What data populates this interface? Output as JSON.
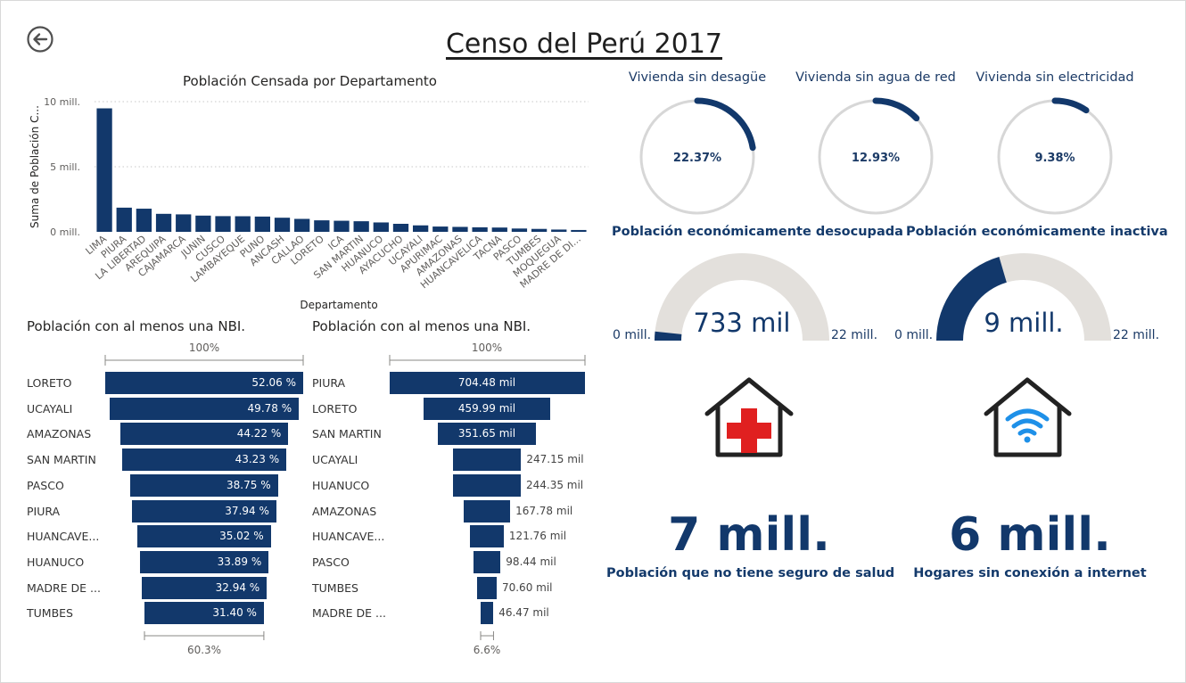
{
  "page": {
    "title": "Censo del Perú 2017"
  },
  "colors": {
    "primary": "#12386b",
    "track": "#e3e0dc",
    "ring_track": "#d7d7d7",
    "cross": "#e02020",
    "wifi": "#1e90e8"
  },
  "bar_chart": {
    "title": "Población Censada por Departamento",
    "xlabel": "Departamento",
    "ylabel": "Suma de Población C...",
    "yticks": [
      "10 mill.",
      "5 mill.",
      "0 mill."
    ]
  },
  "chart_data": [
    {
      "type": "bar",
      "title": "Población Censada por Departamento",
      "xlabel": "Departamento",
      "ylabel": "Suma de Población C...",
      "ylim": [
        0,
        10000000
      ],
      "grid": true,
      "categories": [
        "LIMA",
        "PIURA",
        "LA LIBERTAD",
        "AREQUIPA",
        "CAJAMARCA",
        "JUNIN",
        "CUSCO",
        "LAMBAYEQUE",
        "PUNO",
        "ANCASH",
        "CALLAO",
        "LORETO",
        "ICA",
        "SAN MARTIN",
        "HUANUCO",
        "AYACUCHO",
        "UCAYALI",
        "APURIMAC",
        "AMAZONAS",
        "HUANCAVELICA",
        "TACNA",
        "PASCO",
        "TUMBES",
        "MOQUEGUA",
        "MADRE DE DI..."
      ],
      "values": [
        9485405,
        1856809,
        1778080,
        1382730,
        1341012,
        1246038,
        1205527,
        1197260,
        1172697,
        1083519,
        994494,
        883510,
        850765,
        813381,
        721047,
        616176,
        496459,
        405759,
        379384,
        347639,
        329332,
        254065,
        224863,
        174863,
        141070
      ]
    },
    {
      "type": "bar",
      "orientation": "horizontal-funnel",
      "title": "Población con al menos una NBI.",
      "top_label": "100%",
      "bottom_label": "60.3%",
      "categories": [
        "LORETO",
        "UCAYALI",
        "AMAZONAS",
        "SAN MARTIN",
        "PASCO",
        "PIURA",
        "HUANCAVE...",
        "HUANUCO",
        "MADRE DE ...",
        "TUMBES"
      ],
      "values": [
        52.06,
        49.78,
        44.22,
        43.23,
        38.75,
        37.94,
        35.02,
        33.89,
        32.94,
        31.4
      ],
      "labels": [
        "52.06 %",
        "49.78 %",
        "44.22 %",
        "43.23 %",
        "38.75 %",
        "37.94 %",
        "35.02 %",
        "33.89 %",
        "32.94 %",
        "31.40 %"
      ]
    },
    {
      "type": "bar",
      "orientation": "horizontal-funnel",
      "title": "Población con al menos una NBI.",
      "top_label": "100%",
      "bottom_label": "6.6%",
      "categories": [
        "PIURA",
        "LORETO",
        "SAN MARTIN",
        "UCAYALI",
        "HUANUCO",
        "AMAZONAS",
        "HUANCAVE...",
        "PASCO",
        "TUMBES",
        "MADRE DE ..."
      ],
      "values": [
        704.48,
        459.99,
        351.65,
        247.15,
        244.35,
        167.78,
        121.76,
        98.44,
        70.6,
        46.47
      ],
      "labels": [
        "704.48 mil",
        "459.99 mil",
        "351.65 mil",
        "247.15 mil",
        "244.35 mil",
        "167.78 mil",
        "121.76 mil",
        "98.44 mil",
        "70.60 mil",
        "46.47 mil"
      ]
    }
  ],
  "rings": [
    {
      "title": "Vivienda sin desagüe",
      "value": 22.37,
      "label": "22.37%"
    },
    {
      "title": "Vivienda sin agua de red",
      "value": 12.93,
      "label": "12.93%"
    },
    {
      "title": "Vivienda sin electricidad",
      "value": 9.38,
      "label": "9.38%"
    }
  ],
  "gauges": [
    {
      "title": "Población económicamente desocupada",
      "value": 733000,
      "max": 22000000,
      "center": "733 mil",
      "min_label": "0 mill.",
      "max_label": "22 mill."
    },
    {
      "title": "Población económicamente inactiva",
      "value": 9000000,
      "max": 22000000,
      "center": "9 mill.",
      "min_label": "0 mill.",
      "max_label": "22 mill."
    }
  ],
  "cards": [
    {
      "icon": "health-house-icon",
      "value": "7 mill.",
      "label": "Población que no tiene seguro de salud"
    },
    {
      "icon": "wifi-house-icon",
      "value": "6 mill.",
      "label": "Hogares sin conexión a internet"
    }
  ]
}
